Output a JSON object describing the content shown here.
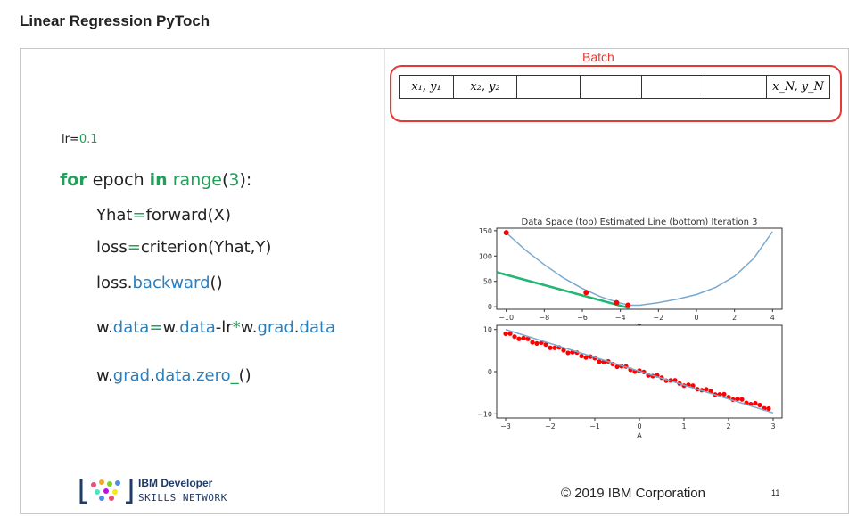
{
  "page": {
    "title": "Linear Regression PyToch"
  },
  "code": {
    "lr_var": "lr=",
    "lr_val": "0.1",
    "for_kw": "for",
    "epoch": " epoch ",
    "in_kw": "in",
    "sp": " ",
    "range_fn": "range",
    "paren_open": "(",
    "range_arg": "3",
    "paren_close_colon": "):",
    "yhat_a": "Yhat",
    "yhat_eq": "=",
    "yhat_b": "forward(X)",
    "loss_a": "loss",
    "loss_eq": "=",
    "loss_b": "criterion(Yhat,Y)",
    "back_a": "loss.",
    "back_b": "backward",
    "back_c": "()",
    "w1": "w.",
    "w2": "data",
    "w3": "=",
    "w4": "w.",
    "w5": "data",
    "w6": "-lr",
    "w7": "*",
    "w8": "w.",
    "w9": "grad",
    "w10": ".",
    "w11": "data",
    "z1": "w.",
    "z2": "grad",
    "z3": ".",
    "z4": "data",
    "z5": ".",
    "z6": "zero",
    "z7": "_",
    "z8": "()"
  },
  "batch": {
    "label": "Batch",
    "cells": [
      {
        "text": "x₁, y₁",
        "width": 60
      },
      {
        "text": "x₂, y₂",
        "width": 70
      },
      {
        "text": "",
        "width": 70
      },
      {
        "text": "",
        "width": 68
      },
      {
        "text": "",
        "width": 70
      },
      {
        "text": "",
        "width": 68
      },
      {
        "text": "x_N, y_N",
        "width": 70
      }
    ]
  },
  "chart_data": [
    {
      "type": "line",
      "title": "Data Space (top) Estimated Line (bottom) Iteration 3",
      "xlabel": "B",
      "ylabel": "",
      "xlim": [
        -10.5,
        4.5
      ],
      "ylim": [
        -5,
        155
      ],
      "xticks": [
        -10,
        -8,
        -6,
        -4,
        -2,
        0,
        2,
        4
      ],
      "yticks": [
        0,
        50,
        100,
        150
      ],
      "series": [
        {
          "color": "#7aa9cf",
          "x": [
            -10,
            -9,
            -8,
            -7,
            -6,
            -5,
            -4,
            -3.5,
            -3,
            -2,
            -1,
            0,
            1,
            2,
            3,
            4
          ],
          "y": [
            146,
            112,
            83,
            57,
            36,
            19,
            7,
            3,
            3,
            8,
            15,
            24,
            38,
            60,
            95,
            148
          ]
        },
        {
          "color": "#22b573",
          "x": [
            -10.5,
            -3.5
          ],
          "y": [
            68,
            -3
          ]
        }
      ],
      "points": {
        "color": "#ff0000",
        "x": [
          -10,
          -5.8,
          -4.2,
          -3.6
        ],
        "y": [
          146,
          28,
          8,
          3
        ]
      }
    },
    {
      "type": "scatter",
      "title": "",
      "xlabel": "A",
      "ylabel": "",
      "xlim": [
        -3.2,
        3.2
      ],
      "ylim": [
        -11,
        11
      ],
      "xticks": [
        -3,
        -2,
        -1,
        0,
        1,
        2,
        3
      ],
      "yticks": [
        -10,
        0,
        10
      ],
      "line": {
        "color": "#7aa9cf",
        "x": [
          -3,
          3
        ],
        "y": [
          10,
          -9.8
        ]
      },
      "points": {
        "color": "#ff0000",
        "x_start": -3,
        "x_end": 2.9,
        "count": 60,
        "slope": -3,
        "intercept": 0
      }
    }
  ],
  "logo": {
    "line1": "IBM Developer",
    "line2": "SKILLS NETWORK"
  },
  "footer": {
    "copyright": "© 2019 IBM Corporation",
    "page_number": "11"
  },
  "colors": {
    "accent_green": "#22a05a",
    "accent_blue": "#2a7fbf",
    "batch_red": "#e53935"
  }
}
